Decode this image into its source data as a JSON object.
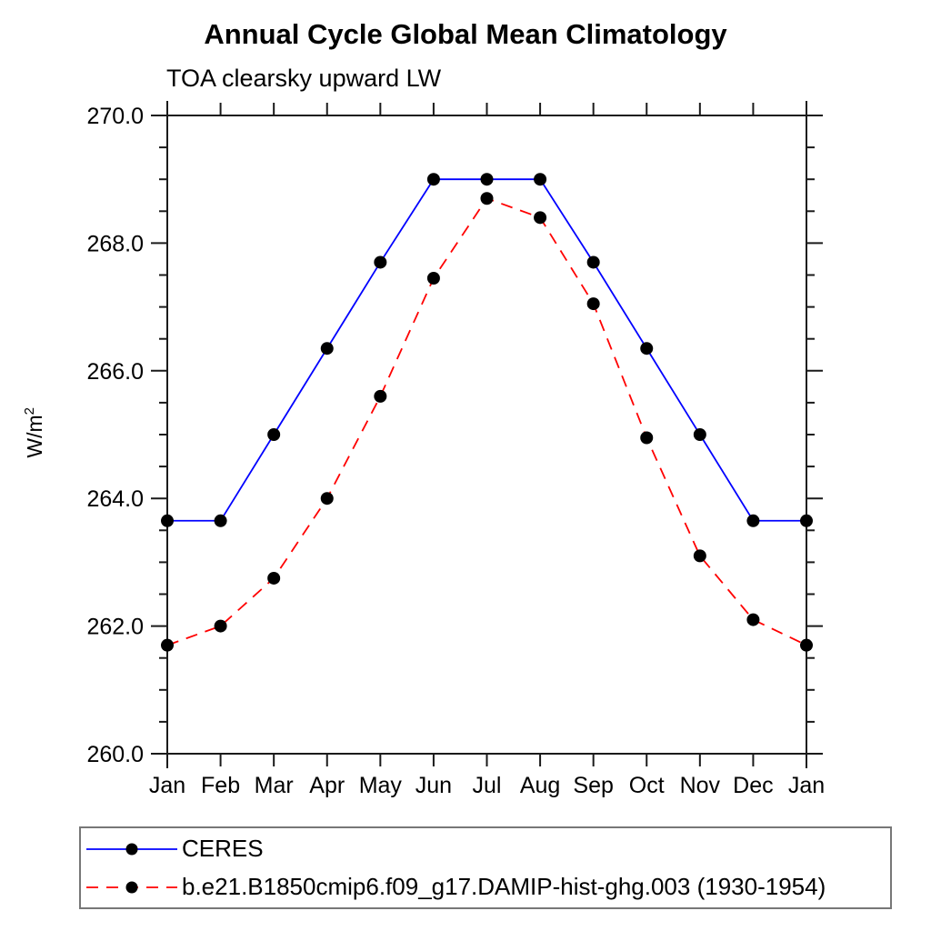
{
  "header": {
    "title": "Annual Cycle Global Mean Climatology",
    "subtitle": "TOA clearsky upward LW"
  },
  "axis": {
    "ylabel_base": "W/m",
    "ylabel_sup": "2"
  },
  "chart_data": {
    "type": "line",
    "title": "Annual Cycle Global Mean Climatology",
    "subtitle": "TOA clearsky upward LW",
    "xlabel": "",
    "ylabel": "W/m²",
    "categories": [
      "Jan",
      "Feb",
      "Mar",
      "Apr",
      "May",
      "Jun",
      "Jul",
      "Aug",
      "Sep",
      "Oct",
      "Nov",
      "Dec",
      "Jan"
    ],
    "ylim": [
      260.0,
      270.0
    ],
    "ytick_major": [
      260.0,
      262.0,
      264.0,
      266.0,
      268.0,
      270.0
    ],
    "ytick_minor_step": 0.5,
    "grid": "off",
    "legend_position": "bottom-left-box",
    "marker_color": "#000000",
    "series": [
      {
        "name": "CERES",
        "color": "#0000ff",
        "style": "solid",
        "dash": "none",
        "values": [
          263.65,
          263.65,
          265.0,
          266.35,
          267.7,
          269.0,
          269.0,
          269.0,
          267.7,
          266.35,
          265.0,
          263.65,
          263.65
        ]
      },
      {
        "name": "b.e21.B1850cmip6.f09_g17.DAMIP-hist-ghg.003 (1930-1954)",
        "color": "#ff0000",
        "style": "dashed",
        "dash": "13 9",
        "values": [
          261.7,
          262.0,
          262.75,
          264.0,
          265.6,
          267.45,
          268.7,
          268.4,
          267.05,
          264.95,
          263.1,
          262.1,
          261.7
        ]
      }
    ]
  }
}
